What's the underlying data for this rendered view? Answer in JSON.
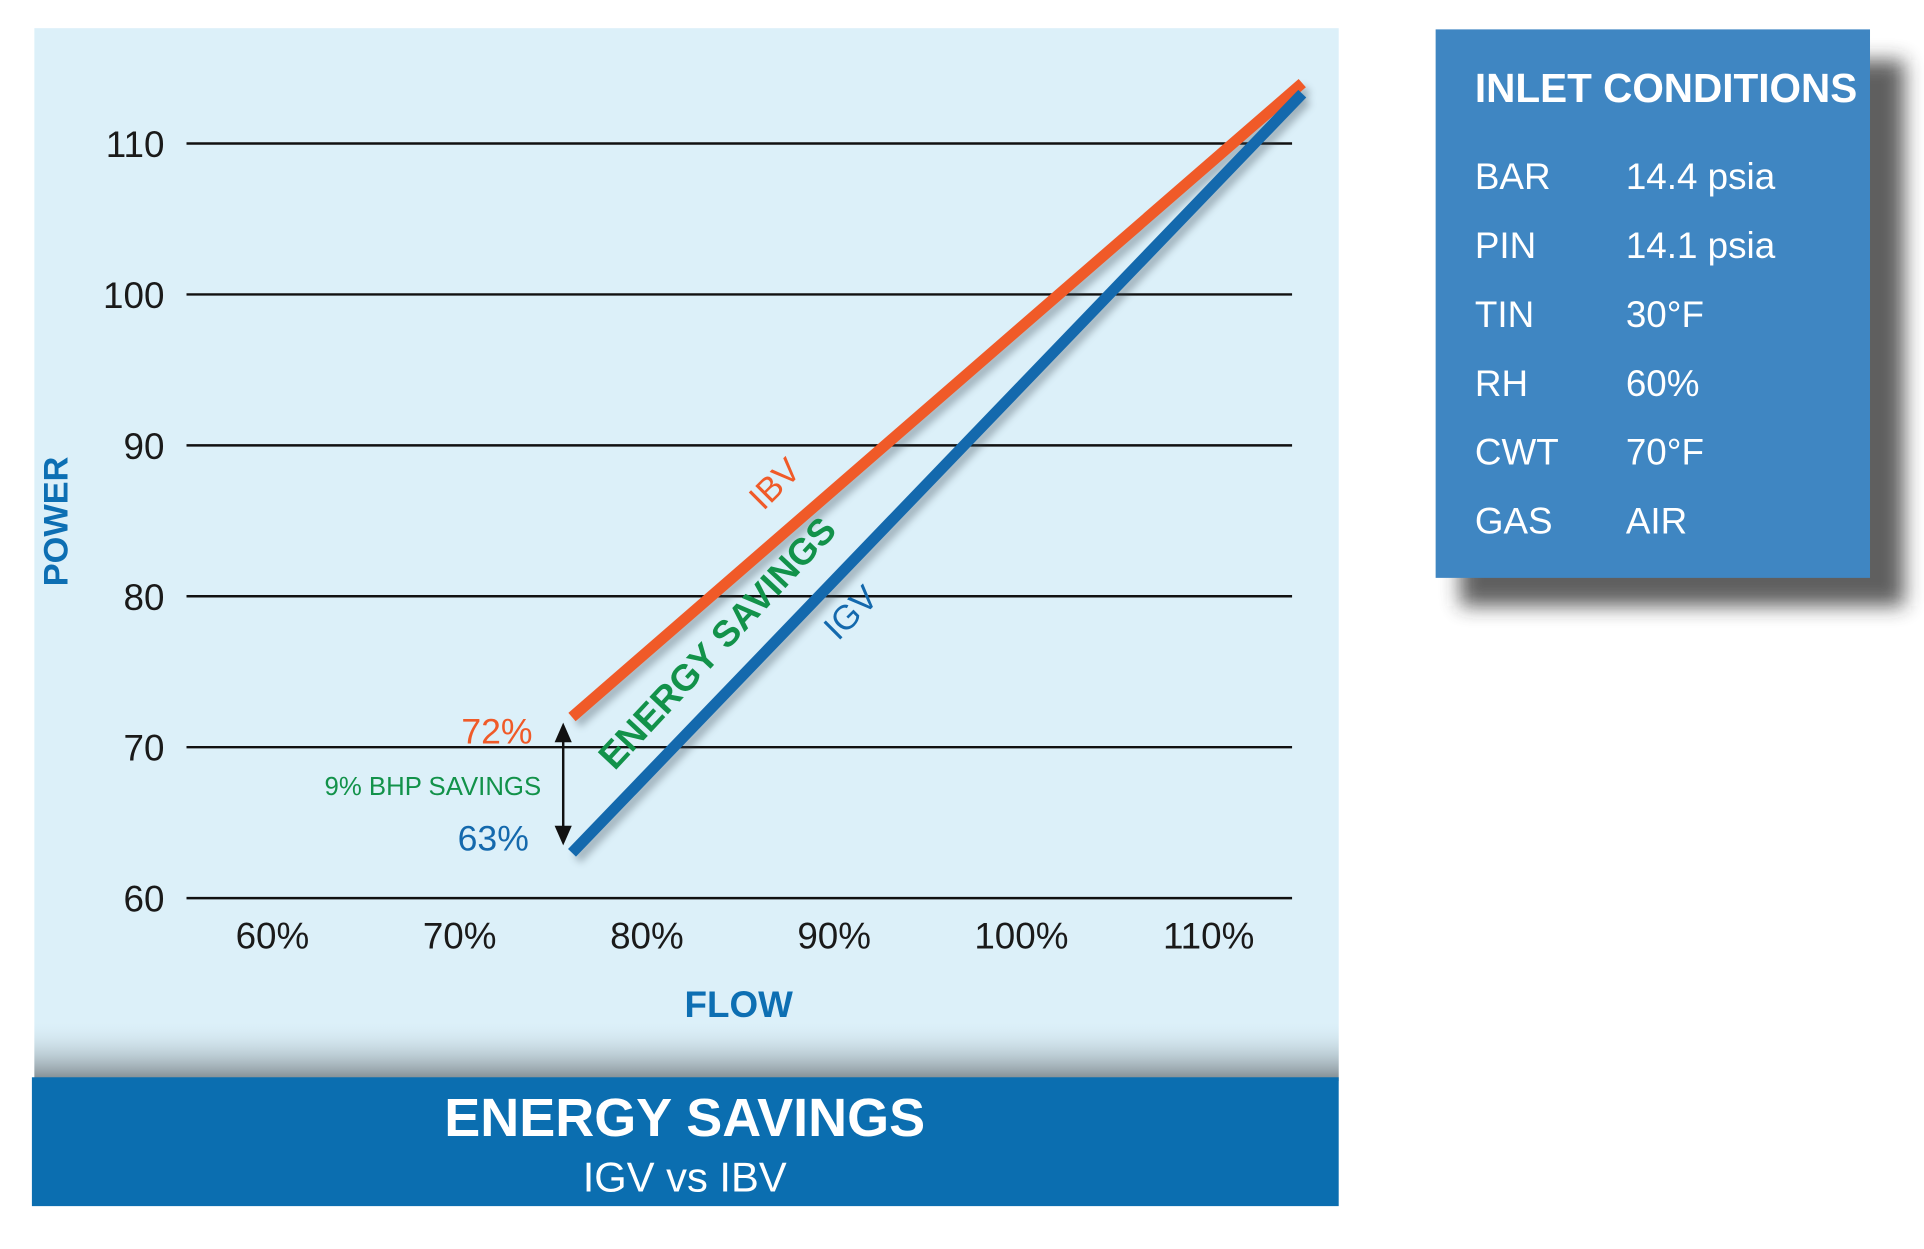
{
  "chart_data": {
    "type": "line",
    "title": "ENERGY SAVINGS",
    "subtitle": "IGV vs IBV",
    "xlabel": "FLOW",
    "ylabel": "POWER",
    "x_ticks": [
      "60%",
      "70%",
      "80%",
      "90%",
      "100%",
      "110%"
    ],
    "x_tick_values": [
      60,
      70,
      80,
      90,
      100,
      110
    ],
    "y_ticks": [
      "60",
      "70",
      "80",
      "90",
      "100",
      "110"
    ],
    "y_tick_values": [
      60,
      70,
      80,
      90,
      100,
      110
    ],
    "xlim": [
      60,
      115
    ],
    "ylim": [
      60,
      114
    ],
    "grid": "horizontal",
    "series": [
      {
        "name": "IBV",
        "color": "#f05a28",
        "x": [
          76,
          115
        ],
        "y": [
          72,
          114
        ]
      },
      {
        "name": "IGV",
        "color": "#1469ad",
        "x": [
          76,
          115
        ],
        "y": [
          63,
          113.3
        ]
      }
    ],
    "annotations": {
      "ibv_start": "72%",
      "igv_start": "63%",
      "savings": "9% BHP SAVINGS",
      "region": "ENERGY SAVINGS"
    },
    "colors": {
      "background": "#dcf0f9",
      "savings_green": "#12924a",
      "axis_label_blue": "#0d6fb3"
    }
  },
  "inlet_conditions": {
    "title": "INLET CONDITIONS",
    "rows": [
      {
        "label": "BAR",
        "value": "14.4 psia"
      },
      {
        "label": "PIN",
        "value": "14.1 psia"
      },
      {
        "label": "TIN",
        "value": "30°F"
      },
      {
        "label": "RH",
        "value": "60%"
      },
      {
        "label": "CWT",
        "value": "70°F"
      },
      {
        "label": "GAS",
        "value": "AIR"
      }
    ],
    "color": "#3f86c2"
  }
}
